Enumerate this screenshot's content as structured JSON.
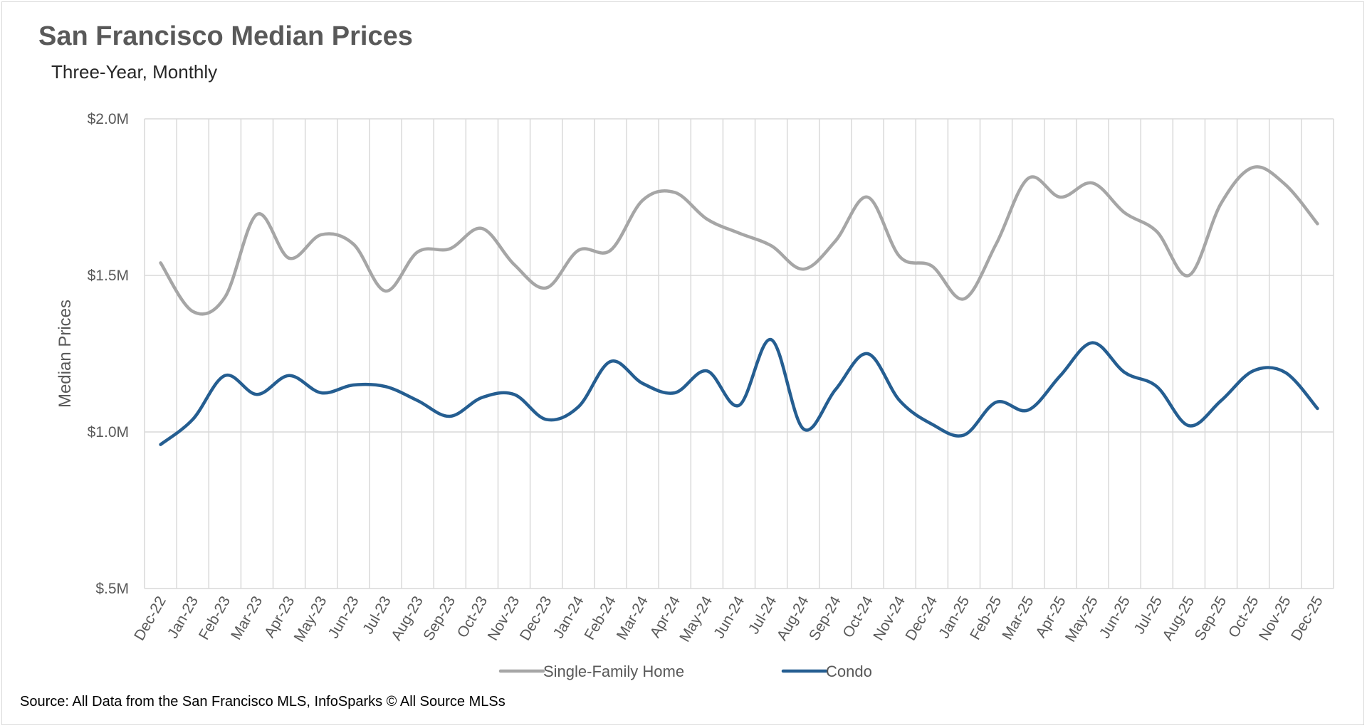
{
  "chart_data": {
    "type": "line",
    "title": "San Francisco Median Prices",
    "subtitle": "Three-Year, Monthly",
    "ylabel": "Median Prices",
    "xlabel": "",
    "source": "Source: All Data from the San Francisco MLS, InfoSparks © All Source MLSs",
    "y_ticks": [
      {
        "value": 500000,
        "label": "$.5M"
      },
      {
        "value": 1000000,
        "label": "$1.0M"
      },
      {
        "value": 1500000,
        "label": "$1.5M"
      },
      {
        "value": 2000000,
        "label": "$2.0M"
      }
    ],
    "ylim": [
      500000,
      2000000
    ],
    "grid": "on",
    "legend_position": "bottom",
    "categories": [
      "Dec-22",
      "Jan-23",
      "Feb-23",
      "Mar-23",
      "Apr-23",
      "May-23",
      "Jun-23",
      "Jul-23",
      "Aug-23",
      "Sep-23",
      "Oct-23",
      "Nov-23",
      "Dec-23",
      "Jan-24",
      "Feb-24",
      "Mar-24",
      "Apr-24",
      "May-24",
      "Jun-24",
      "Jul-24",
      "Aug-24",
      "Sep-24",
      "Oct-24",
      "Nov-24",
      "Dec-24",
      "Jan-25",
      "Feb-25",
      "Mar-25",
      "Apr-25",
      "May-25",
      "Jun-25",
      "Jul-25",
      "Aug-25",
      "Sep-25",
      "Oct-25",
      "Nov-25",
      "Dec-25"
    ],
    "series": [
      {
        "name": "Single-Family Home",
        "color": "#a6a6a6",
        "values": [
          1540000,
          1385000,
          1430000,
          1695000,
          1555000,
          1630000,
          1600000,
          1450000,
          1575000,
          1585000,
          1650000,
          1535000,
          1460000,
          1580000,
          1580000,
          1740000,
          1765000,
          1680000,
          1635000,
          1595000,
          1520000,
          1610000,
          1750000,
          1560000,
          1530000,
          1425000,
          1600000,
          1810000,
          1750000,
          1795000,
          1700000,
          1640000,
          1500000,
          1730000,
          1845000,
          1790000,
          1665000
        ]
      },
      {
        "name": "Condo",
        "color": "#255e91",
        "values": [
          960000,
          1040000,
          1180000,
          1120000,
          1180000,
          1125000,
          1150000,
          1145000,
          1100000,
          1050000,
          1110000,
          1120000,
          1040000,
          1080000,
          1225000,
          1155000,
          1125000,
          1195000,
          1085000,
          1295000,
          1010000,
          1135000,
          1250000,
          1100000,
          1025000,
          990000,
          1095000,
          1070000,
          1180000,
          1285000,
          1190000,
          1145000,
          1020000,
          1100000,
          1195000,
          1190000,
          1075000
        ]
      }
    ]
  }
}
